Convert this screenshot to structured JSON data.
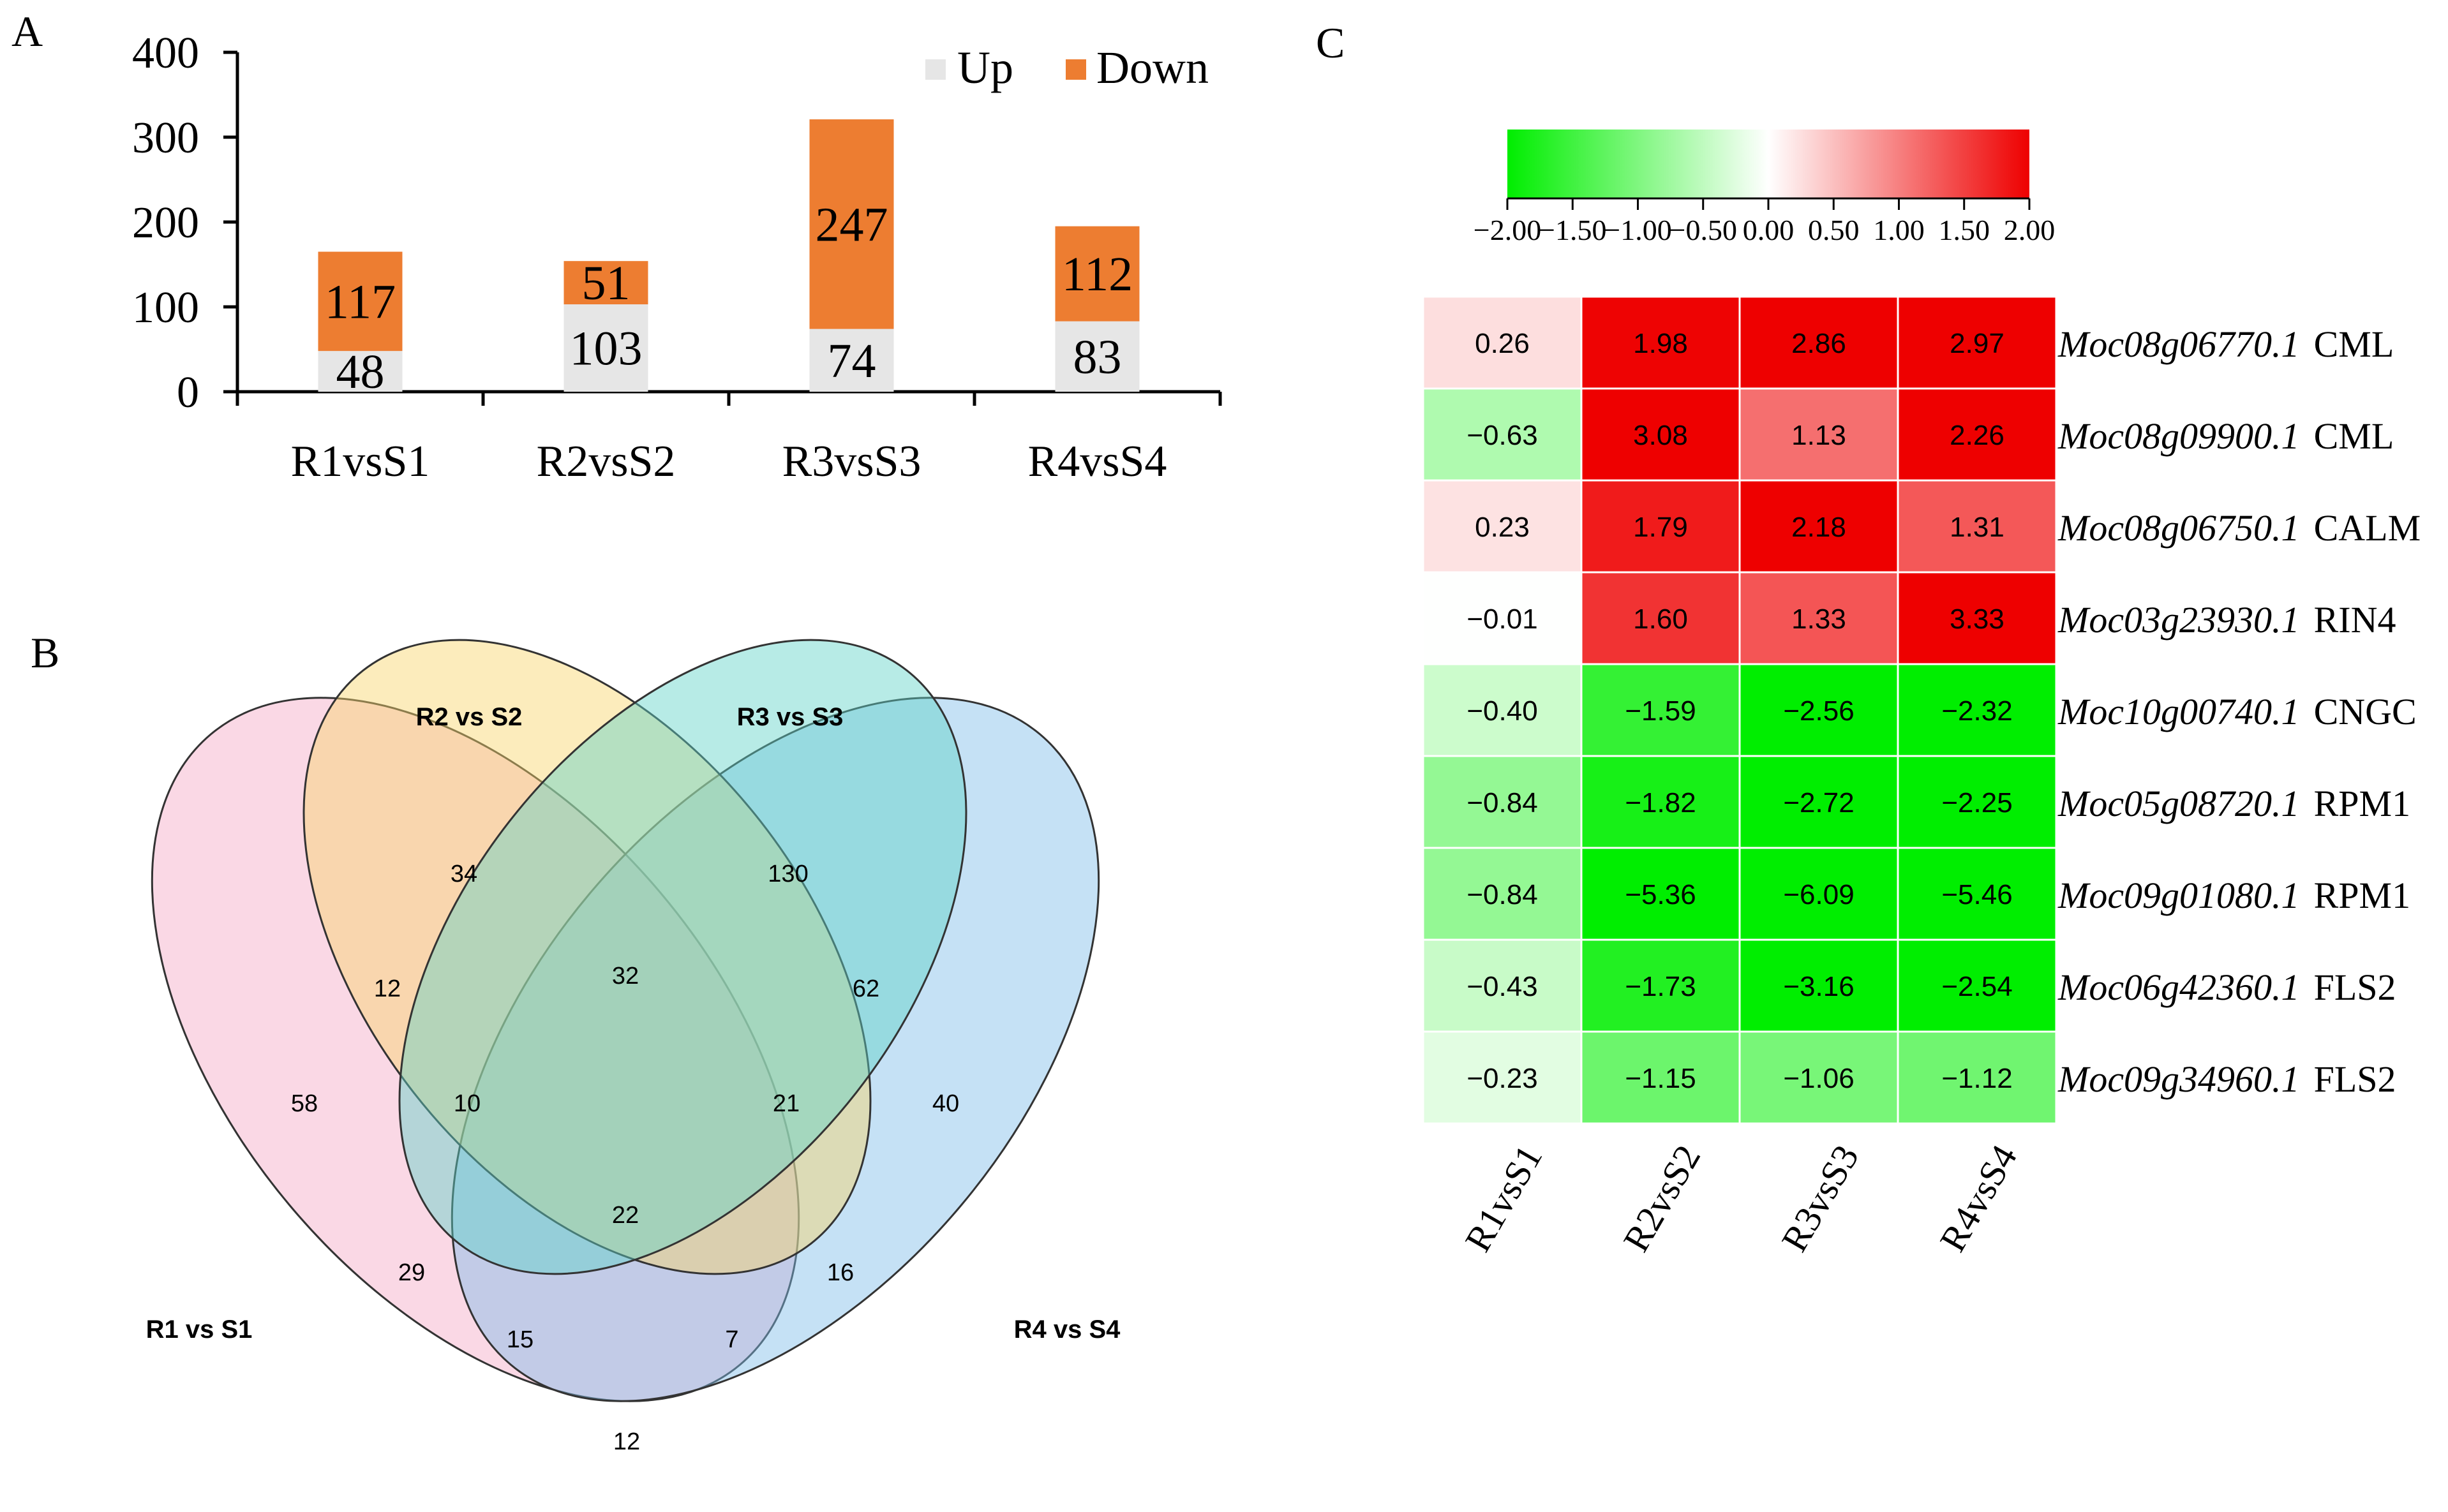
{
  "panels": {
    "a": "A",
    "b": "B",
    "c": "C"
  },
  "chart_data": [
    {
      "type": "bar",
      "stacked": true,
      "categories": [
        "R1vsS1",
        "R2vsS2",
        "R3vsS3",
        "R4vsS4"
      ],
      "series": [
        {
          "name": "Up",
          "values": [
            48,
            103,
            74,
            83
          ],
          "color": "#e6e6e6"
        },
        {
          "name": "Down",
          "values": [
            117,
            51,
            247,
            112
          ],
          "color": "#ed7d31"
        }
      ],
      "ylim": [
        0,
        400
      ],
      "yticks": [
        "0",
        "100",
        "200",
        "300",
        "400"
      ],
      "legend": "top-right",
      "grid": false
    },
    {
      "type": "venn",
      "sets": [
        "R1 vs S1",
        "R2 vs S2",
        "R3 vs S3",
        "R4 vs S4"
      ],
      "colors": [
        "#f3a9c6",
        "#f9d46b",
        "#5fd3c8",
        "#7fbde8"
      ],
      "regions": {
        "R1": 58,
        "R2": 34,
        "R3": 130,
        "R4": 40,
        "R1_R2": 12,
        "R2_R3": 32,
        "R3_R4": 62,
        "R1_R4": 12,
        "R1_R3": 29,
        "R2_R4": 16,
        "R1_R2_R3": 10,
        "R2_R3_R4": 21,
        "R1_R3_R4": 15,
        "R1_R2_R4": 7,
        "R1_R2_R3_R4": 22
      }
    },
    {
      "type": "heatmap",
      "columns": [
        "R1vsS1",
        "R2vsS2",
        "R3vsS3",
        "R4vsS4"
      ],
      "rows": [
        {
          "gene": "Moc08g06770.1",
          "name": "CML",
          "values": [
            0.26,
            1.98,
            2.86,
            2.97
          ]
        },
        {
          "gene": "Moc08g09900.1",
          "name": "CML",
          "values": [
            -0.63,
            3.08,
            1.13,
            2.26
          ]
        },
        {
          "gene": "Moc08g06750.1",
          "name": "CALM",
          "values": [
            0.23,
            1.79,
            2.18,
            1.31
          ]
        },
        {
          "gene": "Moc03g23930.1",
          "name": "RIN4",
          "values": [
            -0.01,
            1.6,
            1.33,
            3.33
          ]
        },
        {
          "gene": "Moc10g00740.1",
          "name": "CNGC",
          "values": [
            -0.4,
            -1.59,
            -2.56,
            -2.32
          ]
        },
        {
          "gene": "Moc05g08720.1",
          "name": "RPM1",
          "values": [
            -0.84,
            -1.82,
            -2.72,
            -2.25
          ]
        },
        {
          "gene": "Moc09g01080.1",
          "name": "RPM1",
          "values": [
            -0.84,
            -5.36,
            -6.09,
            -5.46
          ]
        },
        {
          "gene": "Moc06g42360.1",
          "name": "FLS2",
          "values": [
            -0.43,
            -1.73,
            -3.16,
            -2.54
          ]
        },
        {
          "gene": "Moc09g34960.1",
          "name": "FLS2",
          "values": [
            -0.23,
            -1.15,
            -1.06,
            -1.12
          ]
        }
      ],
      "colorscale": {
        "min": -2,
        "max": 2,
        "low": "#00ee00",
        "mid": "#ffffff",
        "high": "#ee0000"
      },
      "colorbar_ticks": [
        "−2.00",
        "−1.50",
        "−1.00",
        "−0.50",
        "0.00",
        "0.50",
        "1.00",
        "1.50",
        "2.00"
      ]
    }
  ]
}
